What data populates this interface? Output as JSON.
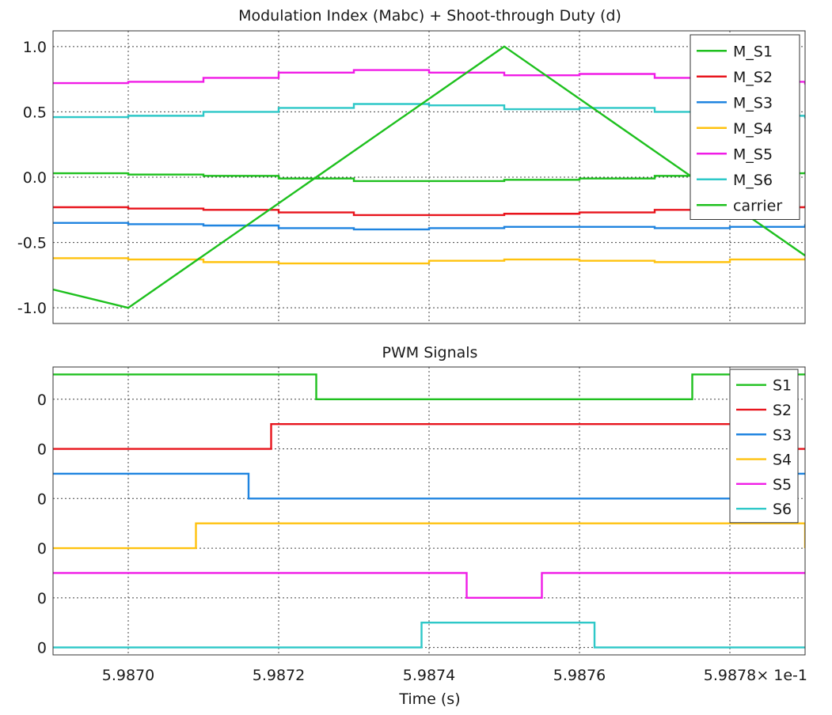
{
  "chart_data": [
    {
      "type": "line",
      "title": "Modulation Index (Mabc) + Shoot-through Duty (d)",
      "xlim": [
        0.59869,
        0.59879
      ],
      "ylim": [
        -1.12,
        1.12
      ],
      "yticks": [
        1.0,
        0.5,
        0.0,
        -0.5,
        -1.0
      ],
      "ytick_labels": [
        "1.0",
        "0.5",
        "0.0",
        "-0.5",
        "-1.0"
      ],
      "xticks": [
        0.5987,
        0.59872,
        0.59874,
        0.59876,
        0.59878
      ],
      "grid": true,
      "legend_position": "top-right",
      "series": [
        {
          "name": "M_S1",
          "color": "#1ec01e",
          "style": "step",
          "x": [
            0.59869,
            0.5987,
            0.59871,
            0.59872,
            0.59873,
            0.59874,
            0.59875,
            0.59876,
            0.59877,
            0.59878,
            0.59879
          ],
          "y": [
            0.03,
            0.02,
            0.01,
            -0.01,
            -0.03,
            -0.03,
            -0.02,
            -0.01,
            0.01,
            0.03,
            0.04
          ]
        },
        {
          "name": "M_S2",
          "color": "#e8141c",
          "style": "step",
          "x": [
            0.59869,
            0.5987,
            0.59871,
            0.59872,
            0.59873,
            0.59874,
            0.59875,
            0.59876,
            0.59877,
            0.59878,
            0.59879
          ],
          "y": [
            -0.23,
            -0.24,
            -0.25,
            -0.27,
            -0.29,
            -0.29,
            -0.28,
            -0.27,
            -0.25,
            -0.23,
            -0.22
          ]
        },
        {
          "name": "M_S3",
          "color": "#1f84e0",
          "style": "step",
          "x": [
            0.59869,
            0.5987,
            0.59871,
            0.59872,
            0.59873,
            0.59874,
            0.59875,
            0.59876,
            0.59877,
            0.59878,
            0.59879
          ],
          "y": [
            -0.35,
            -0.36,
            -0.37,
            -0.39,
            -0.4,
            -0.39,
            -0.38,
            -0.38,
            -0.39,
            -0.38,
            -0.36
          ]
        },
        {
          "name": "M_S4",
          "color": "#ffc20e",
          "style": "step",
          "x": [
            0.59869,
            0.5987,
            0.59871,
            0.59872,
            0.59873,
            0.59874,
            0.59875,
            0.59876,
            0.59877,
            0.59878,
            0.59879
          ],
          "y": [
            -0.62,
            -0.63,
            -0.65,
            -0.66,
            -0.66,
            -0.64,
            -0.63,
            -0.64,
            -0.65,
            -0.63,
            -0.62
          ]
        },
        {
          "name": "M_S5",
          "color": "#f01ce6",
          "style": "step",
          "x": [
            0.59869,
            0.5987,
            0.59871,
            0.59872,
            0.59873,
            0.59874,
            0.59875,
            0.59876,
            0.59877,
            0.59878,
            0.59879
          ],
          "y": [
            0.72,
            0.73,
            0.76,
            0.8,
            0.82,
            0.8,
            0.78,
            0.79,
            0.76,
            0.73,
            0.71
          ]
        },
        {
          "name": "M_S6",
          "color": "#2ec8c8",
          "style": "step",
          "x": [
            0.59869,
            0.5987,
            0.59871,
            0.59872,
            0.59873,
            0.59874,
            0.59875,
            0.59876,
            0.59877,
            0.59878,
            0.59879
          ],
          "y": [
            0.46,
            0.47,
            0.5,
            0.53,
            0.56,
            0.55,
            0.52,
            0.53,
            0.5,
            0.47,
            0.45
          ]
        },
        {
          "name": "carrier",
          "color": "#1ec01e",
          "style": "linear",
          "x": [
            0.59869,
            0.5987,
            0.59875,
            0.5988,
            0.59881
          ],
          "y": [
            -0.86,
            -1.0,
            1.0,
            -1.0,
            -0.86
          ]
        }
      ]
    },
    {
      "type": "line",
      "title": "PWM Signals",
      "xlabel": "Time (s)",
      "xlim": [
        0.59869,
        0.59879
      ],
      "ylim": [
        -0.3,
        11.3
      ],
      "yticks": [
        0,
        2,
        4,
        6,
        8,
        10
      ],
      "ytick_labels": [
        "0",
        "0",
        "0",
        "0",
        "0",
        "0"
      ],
      "xticks": [
        0.5987,
        0.59872,
        0.59874,
        0.59876,
        0.59878
      ],
      "xtick_labels": [
        "5.9870",
        "5.9872",
        "5.9874",
        "5.9876",
        "5.9878"
      ],
      "x_multiplier": "× 1e-1",
      "grid": true,
      "legend_position": "top-right",
      "series": [
        {
          "name": "S1",
          "color": "#1ec01e",
          "style": "step",
          "x": [
            0.59869,
            0.598725,
            0.598775
          ],
          "y": [
            11,
            10,
            11
          ]
        },
        {
          "name": "S2",
          "color": "#e8141c",
          "style": "step",
          "x": [
            0.59869,
            0.598719,
            0.598781
          ],
          "y": [
            8,
            9,
            8
          ]
        },
        {
          "name": "S3",
          "color": "#1f84e0",
          "style": "step",
          "x": [
            0.59869,
            0.598716,
            0.598784
          ],
          "y": [
            7,
            6,
            7
          ]
        },
        {
          "name": "S4",
          "color": "#ffc20e",
          "style": "step",
          "x": [
            0.59869,
            0.598709,
            0.59879
          ],
          "y": [
            4,
            5,
            4
          ]
        },
        {
          "name": "S5",
          "color": "#f01ce6",
          "style": "step",
          "x": [
            0.59869,
            0.598745,
            0.598755
          ],
          "y": [
            3,
            2,
            3
          ]
        },
        {
          "name": "S6",
          "color": "#2ec8c8",
          "style": "step",
          "x": [
            0.59869,
            0.598739,
            0.598762
          ],
          "y": [
            0,
            1,
            0
          ]
        }
      ]
    }
  ]
}
